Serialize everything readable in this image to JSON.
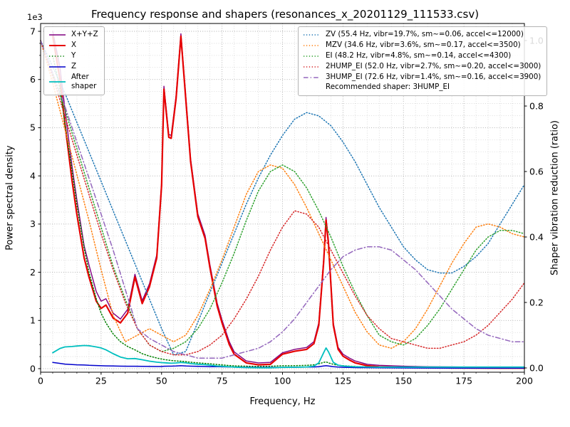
{
  "title": "Frequency response and shapers (resonances_x_20201129_111533.csv)",
  "axes": {
    "x_label": "Frequency, Hz",
    "y_left_label": "Power spectral density",
    "y_right_label": "Shaper vibration reduction (ratio)",
    "y_left_multiplier": "1e3",
    "x_ticks": [
      0,
      25,
      50,
      75,
      100,
      125,
      150,
      175,
      200
    ],
    "y_left_ticks": [
      "0",
      "1",
      "2",
      "3",
      "4",
      "5",
      "6",
      "7"
    ],
    "y_right_ticks": [
      "0.0",
      "0.2",
      "0.4",
      "0.6",
      "0.8",
      "1.0"
    ]
  },
  "chart_data": {
    "type": "line",
    "title": "Frequency response and shapers (resonances_x_20201129_111533.csv)",
    "xlabel": "Frequency, Hz",
    "ylabel_left": "Power spectral density",
    "ylabel_right": "Shaper vibration reduction (ratio)",
    "x_range": [
      0,
      200
    ],
    "y_left_range": [
      0,
      7000
    ],
    "y_right_range": [
      0,
      1.0
    ],
    "grid": "major+minor dotted gray",
    "legend_left_position": "upper left",
    "legend_right_position": "upper right",
    "psd_x": [
      5,
      8,
      10,
      13,
      15,
      18,
      20,
      23,
      25,
      27,
      30,
      33,
      36,
      39,
      42,
      45,
      48,
      50,
      51,
      53,
      54,
      56,
      58,
      60,
      62,
      65,
      68,
      70,
      73,
      75,
      78,
      80,
      85,
      90,
      95,
      100,
      105,
      110,
      113,
      115,
      117,
      118,
      119,
      121,
      123,
      125,
      128,
      130,
      135,
      140,
      150,
      160,
      170,
      180,
      190,
      200
    ],
    "psd_series": [
      {
        "key": "xyz",
        "label": "X+Y+Z",
        "color": "#800080",
        "dash": "solid",
        "width": 1.4,
        "axis": "left",
        "values": [
          7000,
          6250,
          5400,
          4200,
          3500,
          2550,
          2150,
          1600,
          1400,
          1450,
          1150,
          1030,
          1230,
          1960,
          1410,
          1760,
          2360,
          3860,
          5860,
          4860,
          4840,
          5660,
          6950,
          5660,
          4360,
          3210,
          2760,
          2160,
          1360,
          1010,
          560,
          350,
          160,
          120,
          130,
          330,
          400,
          440,
          560,
          950,
          2260,
          3140,
          2660,
          950,
          440,
          300,
          210,
          160,
          90,
          70,
          50,
          40,
          35,
          30,
          25,
          25
        ]
      },
      {
        "key": "x",
        "label": "X",
        "color": "#e60000",
        "dash": "solid",
        "width": 2.2,
        "axis": "left",
        "values": [
          6900,
          6000,
          5100,
          3900,
          3200,
          2300,
          1900,
          1400,
          1250,
          1320,
          1050,
          950,
          1150,
          1900,
          1350,
          1700,
          2300,
          3800,
          5800,
          4800,
          4780,
          5600,
          6900,
          5600,
          4300,
          3150,
          2700,
          2100,
          1300,
          950,
          500,
          300,
          120,
          80,
          90,
          300,
          360,
          400,
          520,
          900,
          2200,
          3080,
          2600,
          900,
          400,
          260,
          170,
          120,
          60,
          40,
          25,
          20,
          15,
          12,
          10,
          10
        ]
      },
      {
        "key": "y",
        "label": "Y",
        "color": "#008000",
        "dash": "dotted",
        "width": 1.5,
        "axis": "left",
        "values": [
          6500,
          5800,
          5100,
          4100,
          3400,
          2500,
          2000,
          1450,
          1150,
          950,
          720,
          560,
          460,
          390,
          310,
          260,
          220,
          200,
          190,
          175,
          170,
          160,
          155,
          145,
          135,
          120,
          110,
          100,
          85,
          78,
          65,
          58,
          50,
          46,
          50,
          60,
          62,
          70,
          80,
          100,
          130,
          140,
          120,
          90,
          70,
          60,
          50,
          45,
          35,
          30,
          25,
          20,
          18,
          15,
          12,
          10
        ]
      },
      {
        "key": "z",
        "label": "Z",
        "color": "#0000cc",
        "dash": "solid",
        "width": 1.5,
        "axis": "left",
        "values": [
          130,
          110,
          95,
          85,
          80,
          75,
          70,
          65,
          60,
          58,
          55,
          52,
          50,
          50,
          48,
          46,
          45,
          45,
          50,
          52,
          52,
          55,
          60,
          55,
          52,
          48,
          45,
          42,
          40,
          38,
          35,
          32,
          28,
          25,
          25,
          28,
          30,
          32,
          35,
          40,
          55,
          60,
          55,
          40,
          32,
          28,
          25,
          22,
          20,
          18,
          15,
          14,
          12,
          11,
          10,
          10
        ]
      },
      {
        "key": "after-shaper",
        "label": "After\nshaper",
        "color": "#00bfbf",
        "dash": "solid",
        "width": 1.8,
        "axis": "left",
        "values": [
          330,
          420,
          450,
          460,
          470,
          480,
          475,
          450,
          430,
          390,
          310,
          240,
          205,
          210,
          185,
          155,
          135,
          125,
          122,
          115,
          112,
          118,
          128,
          120,
          105,
          92,
          82,
          72,
          55,
          48,
          38,
          32,
          22,
          18,
          18,
          26,
          30,
          36,
          52,
          120,
          330,
          430,
          350,
          130,
          72,
          55,
          45,
          40,
          35,
          32,
          32,
          32,
          32,
          32,
          32,
          32
        ]
      }
    ],
    "shaper_x": [
      0,
      5,
      10,
      15,
      20,
      25,
      30,
      35,
      40,
      45,
      50,
      55,
      60,
      65,
      70,
      75,
      80,
      85,
      90,
      95,
      100,
      105,
      110,
      115,
      120,
      125,
      130,
      135,
      140,
      145,
      150,
      155,
      160,
      165,
      170,
      175,
      180,
      185,
      190,
      195,
      200
    ],
    "shaper_series": [
      {
        "key": "zv",
        "label": "ZV (55.4 Hz, vibr=19.7%, sm~=0.06, accel<=12000)",
        "color": "#1f77b4",
        "dash": "dotted",
        "width": 1.5,
        "axis": "right",
        "values": [
          1.0,
          0.92,
          0.84,
          0.75,
          0.66,
          0.57,
          0.48,
          0.39,
          0.3,
          0.21,
          0.12,
          0.04,
          0.05,
          0.14,
          0.23,
          0.32,
          0.41,
          0.5,
          0.58,
          0.65,
          0.71,
          0.76,
          0.78,
          0.77,
          0.74,
          0.69,
          0.63,
          0.56,
          0.49,
          0.43,
          0.37,
          0.33,
          0.3,
          0.29,
          0.29,
          0.31,
          0.34,
          0.38,
          0.44,
          0.5,
          0.56
        ]
      },
      {
        "key": "mzv",
        "label": "MZV (34.6 Hz, vibr=3.6%, sm~=0.17, accel<=3500)",
        "color": "#ff7f0e",
        "dash": "dotted",
        "width": 1.5,
        "axis": "right",
        "values": [
          1.0,
          0.87,
          0.73,
          0.59,
          0.45,
          0.3,
          0.16,
          0.08,
          0.1,
          0.12,
          0.1,
          0.08,
          0.1,
          0.16,
          0.24,
          0.33,
          0.43,
          0.53,
          0.6,
          0.62,
          0.61,
          0.56,
          0.49,
          0.41,
          0.33,
          0.25,
          0.17,
          0.11,
          0.07,
          0.06,
          0.08,
          0.12,
          0.18,
          0.25,
          0.32,
          0.38,
          0.43,
          0.44,
          0.43,
          0.41,
          0.4
        ]
      },
      {
        "key": "ei",
        "label": "EI (48.2 Hz, vibr=4.8%, sm~=0.14, accel<=4300)",
        "color": "#2ca02c",
        "dash": "dotted",
        "width": 1.5,
        "axis": "right",
        "values": [
          1.0,
          0.9,
          0.79,
          0.67,
          0.55,
          0.43,
          0.31,
          0.21,
          0.12,
          0.07,
          0.05,
          0.06,
          0.08,
          0.12,
          0.18,
          0.26,
          0.35,
          0.45,
          0.54,
          0.6,
          0.62,
          0.6,
          0.55,
          0.48,
          0.4,
          0.31,
          0.23,
          0.16,
          0.1,
          0.08,
          0.07,
          0.09,
          0.13,
          0.18,
          0.24,
          0.3,
          0.36,
          0.4,
          0.42,
          0.42,
          0.41
        ]
      },
      {
        "key": "2hump_ei",
        "label": "2HUMP_EI (52.0 Hz, vibr=2.7%, sm~=0.20, accel<=3000)",
        "color": "#d62728",
        "dash": "dotted",
        "width": 1.5,
        "axis": "right",
        "values": [
          1.0,
          0.89,
          0.77,
          0.65,
          0.53,
          0.41,
          0.3,
          0.2,
          0.12,
          0.07,
          0.05,
          0.04,
          0.04,
          0.05,
          0.07,
          0.1,
          0.15,
          0.21,
          0.28,
          0.36,
          0.43,
          0.48,
          0.47,
          0.43,
          0.36,
          0.29,
          0.22,
          0.16,
          0.12,
          0.09,
          0.08,
          0.07,
          0.06,
          0.06,
          0.07,
          0.08,
          0.1,
          0.13,
          0.17,
          0.21,
          0.26
        ]
      },
      {
        "key": "3hump_ei",
        "label": "3HUMP_EI (72.6 Hz, vibr=1.4%, sm~=0.16, accel<=3900)",
        "color": "#9467bd",
        "dash": "dashdot",
        "width": 1.5,
        "axis": "right",
        "values": [
          1.0,
          0.9,
          0.8,
          0.69,
          0.58,
          0.47,
          0.36,
          0.24,
          0.12,
          0.09,
          0.07,
          0.05,
          0.04,
          0.03,
          0.03,
          0.03,
          0.04,
          0.05,
          0.06,
          0.08,
          0.11,
          0.15,
          0.2,
          0.25,
          0.3,
          0.34,
          0.36,
          0.37,
          0.37,
          0.36,
          0.33,
          0.3,
          0.26,
          0.22,
          0.18,
          0.15,
          0.12,
          0.1,
          0.09,
          0.08,
          0.08
        ]
      }
    ],
    "recommended_label": "Recommended shaper: 3HUMP_EI"
  }
}
